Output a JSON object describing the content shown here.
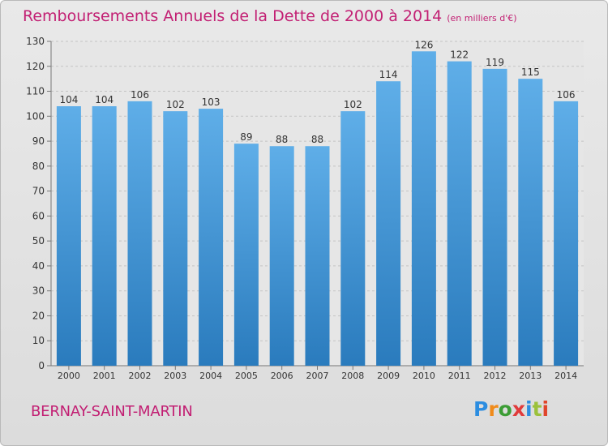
{
  "header": {
    "title": "Remboursements Annuels de la Dette de 2000 à 2014",
    "unit": "(en milliers d'€)"
  },
  "place_name": "BERNAY-SAINT-MARTIN",
  "brand": {
    "logo_text": "Proxiti",
    "colors": [
      "#2c8de0",
      "#f08b1a",
      "#3c9d35",
      "#e03b3b",
      "#2c8de0",
      "#9bc13c",
      "#e0452b"
    ]
  },
  "colors": {
    "title": "#c21f73",
    "bar_top": "#5faee8",
    "bar_bottom": "#2a7bbd",
    "background": "#e3e3e3"
  },
  "chart_data": {
    "type": "bar",
    "categories": [
      "2000",
      "2001",
      "2002",
      "2003",
      "2004",
      "2005",
      "2006",
      "2007",
      "2008",
      "2009",
      "2010",
      "2011",
      "2012",
      "2013",
      "2014"
    ],
    "values": [
      104,
      104,
      106,
      102,
      103,
      89,
      88,
      88,
      102,
      114,
      126,
      122,
      119,
      115,
      106
    ],
    "title": "Remboursements Annuels de la Dette de 2000 à 2014",
    "xlabel": "",
    "ylabel": "",
    "ylim": [
      0,
      130
    ],
    "yticks": [
      0,
      10,
      20,
      30,
      40,
      50,
      60,
      70,
      80,
      90,
      100,
      110,
      120,
      130
    ],
    "grid": "horizontal",
    "data_labels": true
  }
}
